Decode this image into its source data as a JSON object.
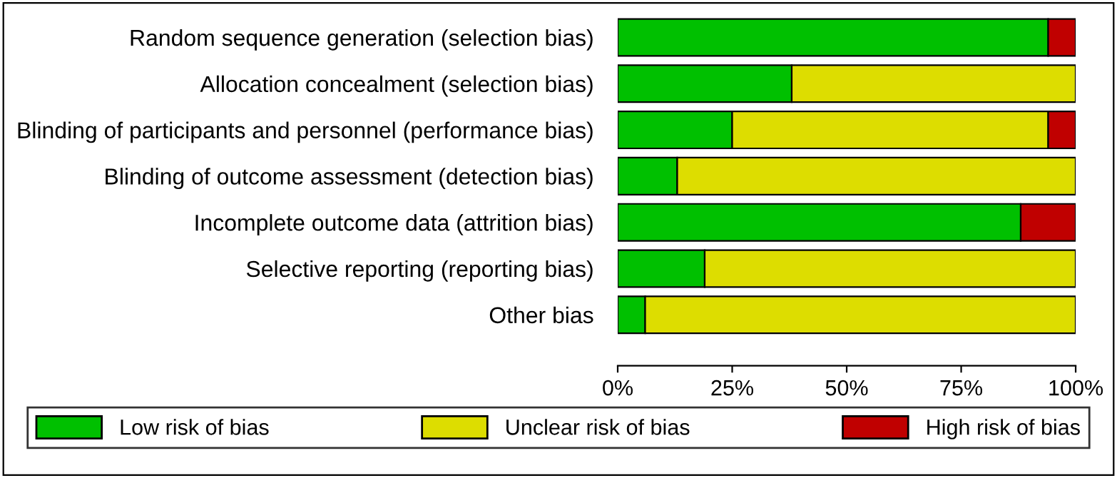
{
  "chart_data": {
    "type": "bar",
    "orientation": "horizontal",
    "stacked": true,
    "categories": [
      "Random sequence generation (selection bias)",
      "Allocation concealment (selection bias)",
      "Blinding of participants and personnel (performance bias)",
      "Blinding of outcome assessment (detection bias)",
      "Incomplete outcome data (attrition bias)",
      "Selective reporting (reporting bias)",
      "Other bias"
    ],
    "series": [
      {
        "name": "Low risk of bias",
        "color": "#00c000",
        "values": [
          94,
          38,
          25,
          13,
          88,
          19,
          6
        ]
      },
      {
        "name": "Unclear risk of bias",
        "color": "#dddd00",
        "values": [
          null,
          62,
          69,
          87,
          null,
          81,
          94
        ]
      },
      {
        "name": "High risk of bias",
        "color": "#c00000",
        "values": [
          6,
          null,
          6,
          null,
          12,
          null,
          null
        ]
      }
    ],
    "xlim": [
      0,
      100
    ],
    "xticks": [
      {
        "value": 0,
        "label": "0%"
      },
      {
        "value": 25,
        "label": "25%"
      },
      {
        "value": 50,
        "label": "50%"
      },
      {
        "value": 75,
        "label": "75%"
      },
      {
        "value": 100,
        "label": "100%"
      }
    ],
    "grid": false,
    "legend": "bottom"
  }
}
